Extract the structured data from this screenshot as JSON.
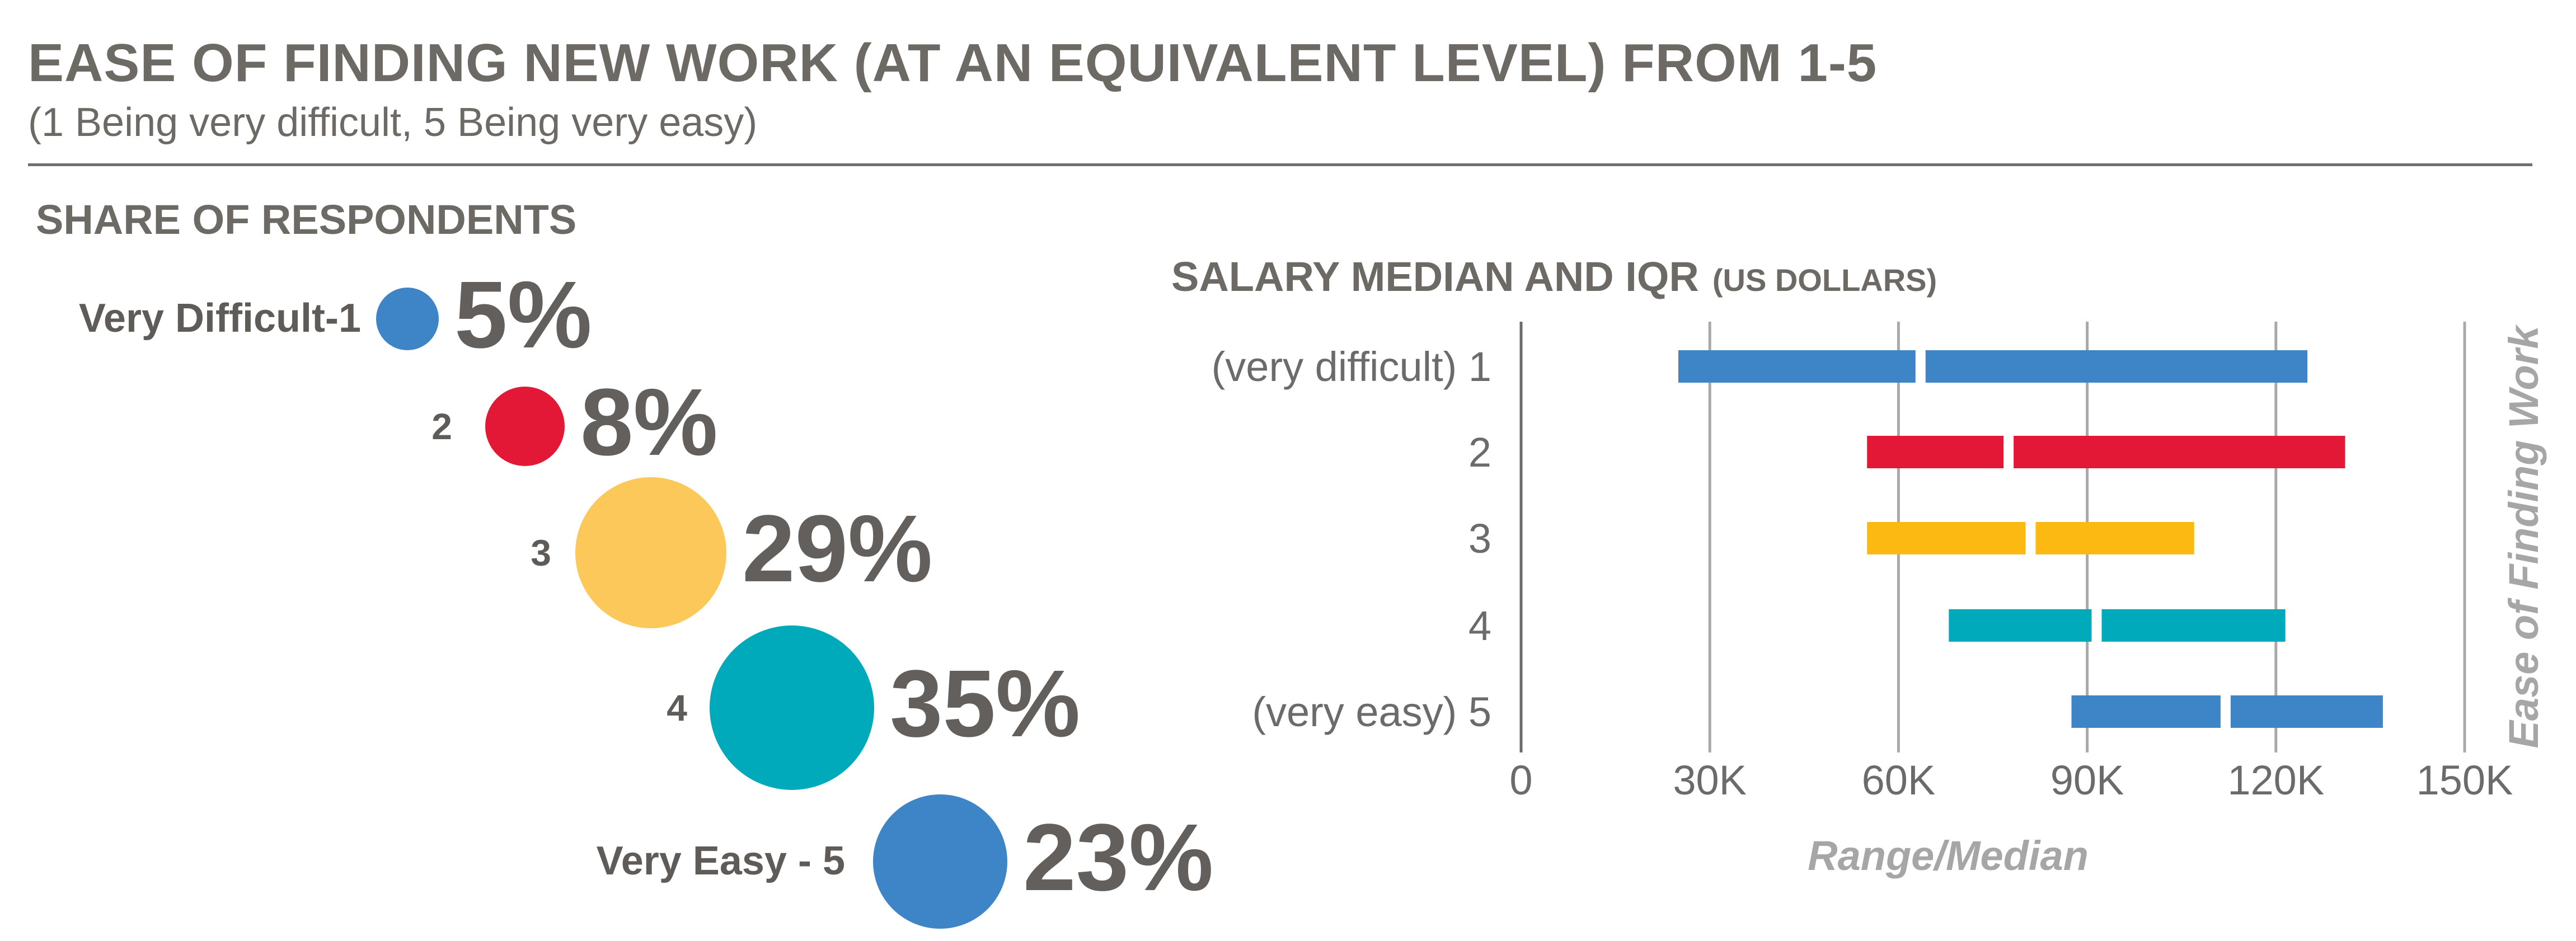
{
  "header": {
    "title": "EASE OF FINDING NEW WORK (AT AN EQUIVALENT LEVEL) FROM 1-5",
    "subtitle": "(1 Being very difficult, 5 Being very easy)"
  },
  "share": {
    "heading": "SHARE OF RESPONDENTS"
  },
  "salary": {
    "heading": "SALARY MEDIAN AND IQR",
    "unit": "(US DOLLARS)"
  },
  "chart_data": [
    {
      "type": "bubble",
      "title": "SHARE OF RESPONDENTS",
      "categories": [
        "Very Difficult-1",
        "2",
        "3",
        "4",
        "Very Easy - 5"
      ],
      "values": [
        5,
        8,
        29,
        35,
        23
      ],
      "value_labels": [
        "5%",
        "8%",
        "29%",
        "35%",
        "23%"
      ],
      "colors": [
        "#3d85c6",
        "#e31837",
        "#fdc85a",
        "#00aabb",
        "#3d85c6"
      ]
    },
    {
      "type": "range-bar",
      "title": "SALARY MEDIAN AND IQR (US DOLLARS)",
      "xlabel": "Range/Median",
      "ylabel": "Ease of Finding Work",
      "xlim": [
        0,
        150000
      ],
      "x_ticks": [
        0,
        30000,
        60000,
        90000,
        120000,
        150000
      ],
      "x_tick_labels": [
        "0",
        "30K",
        "60K",
        "90K",
        "120K",
        "150K"
      ],
      "grid": true,
      "categories": [
        "(very difficult) 1",
        "2",
        "3",
        "4",
        "(very easy) 5"
      ],
      "ranges": [
        {
          "low": 25000,
          "median": 63500,
          "high": 125000
        },
        {
          "low": 55000,
          "median": 77500,
          "high": 131000
        },
        {
          "low": 55000,
          "median": 81000,
          "high": 107000
        },
        {
          "low": 68000,
          "median": 91500,
          "high": 121500
        },
        {
          "low": 87500,
          "median": 112000,
          "high": 137000
        }
      ],
      "colors": [
        "#3d85c6",
        "#e31837",
        "#fbb912",
        "#00aabb",
        "#3d85c6"
      ]
    }
  ]
}
